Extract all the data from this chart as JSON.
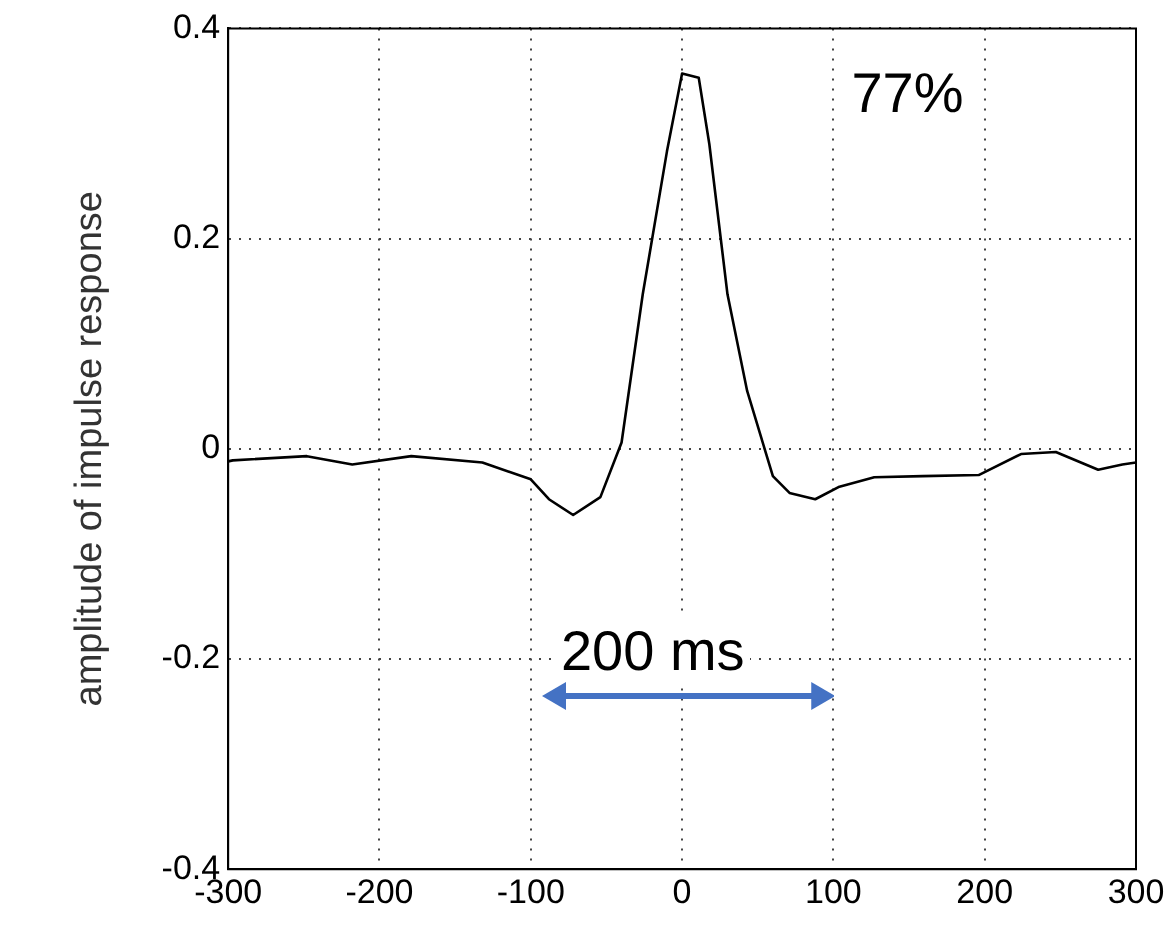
{
  "chart_data": {
    "type": "line",
    "ylabel": "amplitude of impulse response",
    "x": [
      -300,
      -297,
      -248,
      -218,
      -179,
      -132,
      -100,
      -88,
      -72,
      -54,
      -40,
      -26,
      -10,
      0,
      11,
      18,
      30,
      43,
      60,
      71,
      88,
      104,
      127,
      159,
      196,
      224,
      247,
      275,
      291,
      300
    ],
    "series": [
      {
        "color": "#000000",
        "values": [
          -0.012,
          -0.011,
          -0.007,
          -0.015,
          -0.007,
          -0.013,
          -0.029,
          -0.048,
          -0.063,
          -0.046,
          0.006,
          0.147,
          0.283,
          0.357,
          0.353,
          0.29,
          0.147,
          0.055,
          -0.026,
          -0.042,
          -0.048,
          -0.036,
          -0.027,
          -0.026,
          -0.025,
          -0.005,
          -0.003,
          -0.02,
          -0.015,
          -0.013
        ]
      }
    ],
    "xlim": [
      -300,
      300
    ],
    "xticks": [
      -300,
      -200,
      -100,
      0,
      100,
      200,
      300
    ],
    "ylim": [
      -0.4,
      0.4
    ],
    "yticks": [
      -0.4,
      -0.2,
      0,
      0.2,
      0.4
    ],
    "grid": true,
    "legend": false,
    "marker": "none",
    "line_style": "solid",
    "annotations": [
      "77%",
      "200 ms"
    ]
  }
}
